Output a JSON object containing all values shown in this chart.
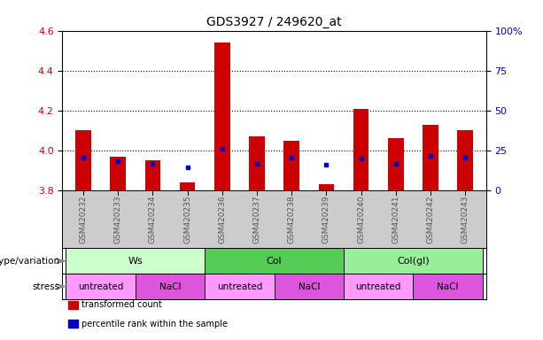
{
  "title": "GDS3927 / 249620_at",
  "samples": [
    "GSM420232",
    "GSM420233",
    "GSM420234",
    "GSM420235",
    "GSM420236",
    "GSM420237",
    "GSM420238",
    "GSM420239",
    "GSM420240",
    "GSM420241",
    "GSM420242",
    "GSM420243"
  ],
  "bar_tops": [
    4.1,
    3.97,
    3.95,
    3.84,
    4.54,
    4.07,
    4.05,
    3.83,
    4.21,
    4.06,
    4.13,
    4.1
  ],
  "bar_base": 3.8,
  "blue_y": [
    3.965,
    3.945,
    3.935,
    3.915,
    4.01,
    3.935,
    3.965,
    3.93,
    3.96,
    3.935,
    3.975,
    3.965
  ],
  "ylim": [
    3.8,
    4.6
  ],
  "yticks_left": [
    3.8,
    4.0,
    4.2,
    4.4,
    4.6
  ],
  "yticks_right_vals": [
    0,
    25,
    50,
    75,
    100
  ],
  "yticks_right_pos": [
    3.8,
    4.0,
    4.2,
    4.4,
    4.6
  ],
  "bar_color": "#cc0000",
  "blue_color": "#0000cc",
  "tick_label_color_left": "#cc0000",
  "tick_label_color_right": "#0000cc",
  "genotype_groups": [
    {
      "label": "Ws",
      "start": 0,
      "end": 3,
      "color": "#ccffcc"
    },
    {
      "label": "Col",
      "start": 4,
      "end": 7,
      "color": "#55cc55"
    },
    {
      "label": "Col(gl)",
      "start": 8,
      "end": 11,
      "color": "#99ee99"
    }
  ],
  "stress_groups": [
    {
      "label": "untreated",
      "start": 0,
      "end": 1,
      "color": "#ff99ff"
    },
    {
      "label": "NaCl",
      "start": 2,
      "end": 3,
      "color": "#dd55dd"
    },
    {
      "label": "untreated",
      "start": 4,
      "end": 5,
      "color": "#ff99ff"
    },
    {
      "label": "NaCl",
      "start": 6,
      "end": 7,
      "color": "#dd55dd"
    },
    {
      "label": "untreated",
      "start": 8,
      "end": 9,
      "color": "#ff99ff"
    },
    {
      "label": "NaCl",
      "start": 10,
      "end": 11,
      "color": "#dd55dd"
    }
  ],
  "genotype_label": "genotype/variation",
  "stress_label": "stress",
  "legend_items": [
    {
      "color": "#cc0000",
      "label": "transformed count"
    },
    {
      "color": "#0000cc",
      "label": "percentile rank within the sample"
    }
  ],
  "xticklabel_color": "#555555",
  "xtick_bg": "#cccccc",
  "plot_bg": "#ffffff"
}
